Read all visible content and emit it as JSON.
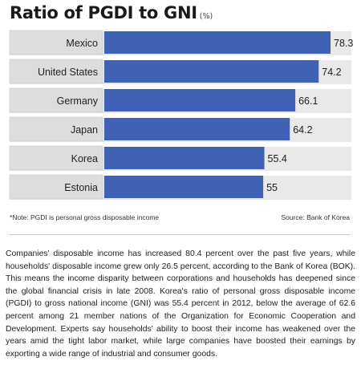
{
  "title": "Ratio of PGDI to GNI",
  "title_unit": "(%)",
  "note": "*Note: PGDI is personal gross disposable income",
  "source": "Source: Bank of Korea",
  "body_text": "Companies' disposable income has increased 80.4 percent over the past five years, while households' disposable income grew only 26.5 percent, according to the Bank of Korea (BOK). This means the income disparity between corporations and households has deepened since the global financial crisis in late 2008. Korea's ratio of personal gross disposable income (PGDI) to gross national income (GNI) was 55.4 percent in 2012, below the average of 62.6 percent among 21 member nations of the Organization for Economic Cooperation and Development. Experts say households' ability to boost their income has weakened over the years amid the tight labor market, while large companies have boosted their earnings by exporting a wide range of industrial and consumer goods.",
  "chart_data": {
    "type": "bar",
    "orientation": "horizontal",
    "title": "Ratio of PGDI to GNI",
    "unit": "(%)",
    "categories": [
      "Mexico",
      "United States",
      "Germany",
      "Japan",
      "Korea",
      "Estonia"
    ],
    "values": [
      78.3,
      74.2,
      66.1,
      64.2,
      55.4,
      55
    ],
    "value_labels": [
      "78.3",
      "74.2",
      "66.1",
      "64.2",
      "55.4",
      "55"
    ],
    "grid": false,
    "legend": "none"
  },
  "colors": {
    "bar": "#3f62b4",
    "label_box": "#dddddd",
    "row_band": "#e9e9e9"
  }
}
